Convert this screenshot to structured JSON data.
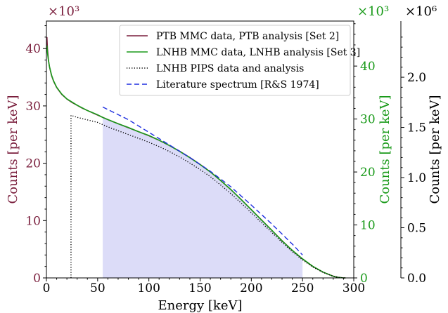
{
  "chart_data": {
    "type": "line",
    "xlabel": "Energy [keV]",
    "xlim": [
      0,
      300
    ],
    "xticks": [
      0,
      50,
      100,
      150,
      200,
      250,
      300
    ],
    "axes": {
      "left": {
        "label": "Counts [per keV]",
        "multiplier": "×10³",
        "lim": [
          0,
          44.8
        ],
        "ticks": [
          0,
          10,
          20,
          30,
          40
        ],
        "color": "#7a1f3d"
      },
      "right1": {
        "label": "Counts [per keV]",
        "multiplier": "×10³",
        "lim": [
          0,
          48.5
        ],
        "ticks": [
          0,
          10,
          20,
          30,
          40
        ],
        "color": "#1a9a1a"
      },
      "right2": {
        "label": "Counts [per keV]",
        "multiplier": "×10⁶",
        "lim": [
          0,
          2.56
        ],
        "ticks": [
          0.0,
          0.5,
          1.0,
          1.5,
          2.0
        ],
        "tick_labels": [
          "0.0",
          "0.5",
          "1.0",
          "1.5",
          "2.0"
        ],
        "color": "#000000"
      }
    },
    "legend_position": "top-right",
    "series": [
      {
        "name": "PTB MMC data, PTB analysis [Set 2]",
        "color": "#7a1f3d",
        "style": "solid",
        "axis": "left",
        "x": [
          0.5,
          1,
          2,
          3,
          5,
          7,
          10,
          15,
          20,
          25,
          30,
          35,
          40,
          45,
          50,
          55,
          60,
          70,
          80,
          90,
          100,
          110,
          120,
          130,
          140,
          150,
          160,
          170,
          180,
          190,
          200,
          210,
          220,
          230,
          240,
          250,
          260,
          270,
          280,
          285,
          290,
          292
        ],
        "y": [
          42.0,
          40.0,
          38.0,
          36.8,
          35.3,
          34.3,
          33.2,
          32.0,
          31.2,
          30.6,
          30.1,
          29.6,
          29.2,
          28.8,
          28.4,
          28.0,
          27.6,
          26.9,
          26.2,
          25.5,
          24.8,
          24.0,
          23.1,
          22.1,
          21.0,
          19.8,
          18.5,
          17.0,
          15.4,
          13.7,
          11.9,
          10.1,
          8.3,
          6.5,
          4.8,
          3.3,
          2.0,
          1.0,
          0.3,
          0.1,
          0.0,
          0.0
        ]
      },
      {
        "name": "LNHB MMC data, LNHB analysis [Set 3]",
        "color": "#1a9a1a",
        "style": "solid",
        "axis": "right1",
        "x": [
          0.5,
          1,
          2,
          3,
          5,
          7,
          10,
          15,
          20,
          25,
          30,
          35,
          40,
          45,
          50,
          55,
          60,
          70,
          80,
          90,
          100,
          110,
          120,
          130,
          140,
          150,
          160,
          170,
          180,
          190,
          200,
          210,
          220,
          230,
          240,
          250,
          260,
          270,
          280,
          285,
          290,
          292
        ],
        "y": [
          43.9,
          42.5,
          41.0,
          39.9,
          38.3,
          37.2,
          36.0,
          34.7,
          33.8,
          33.2,
          32.6,
          32.1,
          31.6,
          31.2,
          30.8,
          30.3,
          29.9,
          29.1,
          28.4,
          27.6,
          26.9,
          26.0,
          25.0,
          23.9,
          22.7,
          21.4,
          20.0,
          18.4,
          16.7,
          14.8,
          12.9,
          10.9,
          9.0,
          7.0,
          5.2,
          3.6,
          2.2,
          1.1,
          0.3,
          0.1,
          0.0,
          0.0
        ]
      },
      {
        "name": "LNHB PIPS data and analysis",
        "color": "#000000",
        "style": "dotted",
        "axis": "right2",
        "x": [
          24,
          24,
          30,
          40,
          50,
          60,
          70,
          80,
          90,
          100,
          110,
          120,
          130,
          140,
          150,
          160,
          170,
          180,
          190,
          200,
          210,
          220,
          230,
          240,
          250,
          260,
          270,
          280,
          285,
          290,
          292
        ],
        "y": [
          0.0,
          1.62,
          1.6,
          1.575,
          1.55,
          1.505,
          1.467,
          1.429,
          1.391,
          1.352,
          1.309,
          1.26,
          1.205,
          1.145,
          1.08,
          1.009,
          0.927,
          0.84,
          0.747,
          0.649,
          0.551,
          0.453,
          0.355,
          0.262,
          0.18,
          0.109,
          0.055,
          0.016,
          0.005,
          0.0,
          0.0
        ]
      },
      {
        "name": "Literature spectrum [R&S 1974]",
        "color": "#1f2fe0",
        "style": "dashed",
        "axis": "left",
        "x": [
          55,
          80,
          100,
          120,
          140,
          160,
          180,
          200,
          220,
          240,
          250
        ],
        "y": [
          29.8,
          27.6,
          25.4,
          23.2,
          21.0,
          18.6,
          15.9,
          12.7,
          9.4,
          5.9,
          4.0
        ]
      }
    ],
    "shaded_region": {
      "x": [
        55,
        250
      ],
      "color": "#dcdcf8"
    }
  }
}
